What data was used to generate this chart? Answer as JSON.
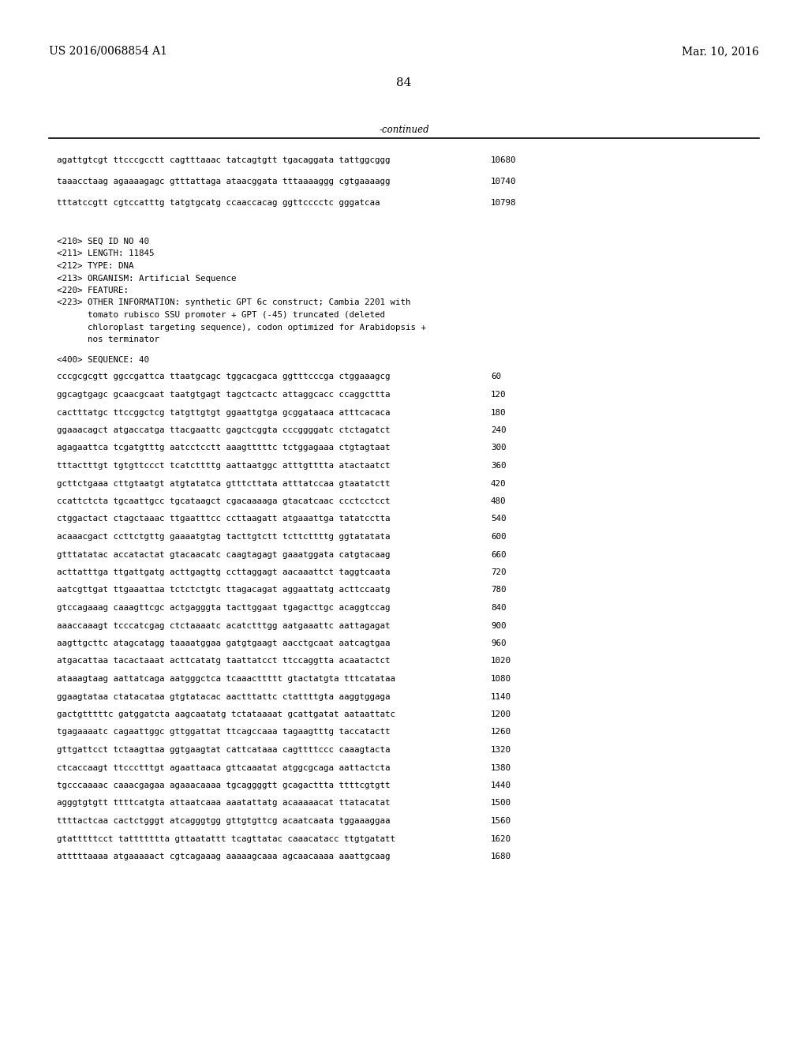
{
  "header_left": "US 2016/0068854 A1",
  "header_right": "Mar. 10, 2016",
  "page_number": "84",
  "continued_label": "-continued",
  "background_color": "#ffffff",
  "text_color": "#000000",
  "sequence_lines_top": [
    [
      "agattgtcgt ttcccgcctt cagtttaaac tatcagtgtt tgacaggata tattggcggg",
      "10680"
    ],
    [
      "taaacctaag agaaaagagc gtttattaga ataacggata tttaaaaggg cgtgaaaagg",
      "10740"
    ],
    [
      "tttatccgtt cgtccatttg tatgtgcatg ccaaccacag ggttcccctc gggatcaa",
      "10798"
    ]
  ],
  "metadata_lines": [
    "<210> SEQ ID NO 40",
    "<211> LENGTH: 11845",
    "<212> TYPE: DNA",
    "<213> ORGANISM: Artificial Sequence",
    "<220> FEATURE:",
    "<223> OTHER INFORMATION: synthetic GPT 6c construct; Cambia 2201 with",
    "      tomato rubisco SSU promoter + GPT (-45) truncated (deleted",
    "      chloroplast targeting sequence), codon optimized for Arabidopsis +",
    "      nos terminator"
  ],
  "sequence_label": "<400> SEQUENCE: 40",
  "sequence_lines": [
    [
      "cccgcgcgtt ggccgattca ttaatgcagc tggcacgaca ggtttcccga ctggaaagcg",
      "60"
    ],
    [
      "ggcagtgagc gcaacgcaat taatgtgagt tagctcactc attaggcacc ccaggcttta",
      "120"
    ],
    [
      "cactttatgc ttccggctcg tatgttgtgt ggaattgtga gcggataaca atttcacaca",
      "180"
    ],
    [
      "ggaaacagct atgaccatga ttacgaattc gagctcggta cccggggatc ctctagatct",
      "240"
    ],
    [
      "agagaattca tcgatgtttg aatcctcctt aaagtttttc tctggagaaa ctgtagtaat",
      "300"
    ],
    [
      "tttactttgt tgtgttccct tcatcttttg aattaatggc atttgtttta atactaatct",
      "360"
    ],
    [
      "gcttctgaaa cttgtaatgt atgtatatca gtttcttata atttatccaa gtaatatctt",
      "420"
    ],
    [
      "ccattctcta tgcaattgcc tgcataagct cgacaaaaga gtacatcaac ccctcctcct",
      "480"
    ],
    [
      "ctggactact ctagctaaac ttgaatttcc ccttaagatt atgaaattga tatatcctta",
      "540"
    ],
    [
      "acaaacgact ccttctgttg gaaaatgtag tacttgtctt tcttcttttg ggtatatata",
      "600"
    ],
    [
      "gtttatatac accatactat gtacaacatc caagtagagt gaaatggata catgtacaag",
      "660"
    ],
    [
      "acttatttga ttgattgatg acttgagttg ccttaggagt aacaaattct taggtcaata",
      "720"
    ],
    [
      "aatcgttgat ttgaaattaa tctctctgtc ttagacagat aggaattatg acttccaatg",
      "780"
    ],
    [
      "gtccagaaag caaagttcgc actgagggta tacttggaat tgagacttgc acaggtccag",
      "840"
    ],
    [
      "aaaccaaagt tcccatcgag ctctaaaatc acatctttgg aatgaaattc aattagagat",
      "900"
    ],
    [
      "aagttgcttc atagcatagg taaaatggaa gatgtgaagt aacctgcaat aatcagtgaa",
      "960"
    ],
    [
      "atgacattaa tacactaaat acttcatatg taattatcct ttccaggtta acaatactct",
      "1020"
    ],
    [
      "ataaagtaag aattatcaga aatgggctca tcaaacttttt gtactatgta tttcatataa",
      "1080"
    ],
    [
      "ggaagtataa ctatacataa gtgtatacac aactttattc ctattttgta aaggtggaga",
      "1140"
    ],
    [
      "gactgtttttc gatggatcta aagcaatatg tctataaaat gcattgatat aataattatc",
      "1200"
    ],
    [
      "tgagaaaatc cagaattggc gttggattat ttcagccaaa tagaagtttg taccatactt",
      "1260"
    ],
    [
      "gttgattcct tctaagttaa ggtgaagtat cattcataaa cagttttccc caaagtacta",
      "1320"
    ],
    [
      "ctcaccaagt ttccctttgt agaattaaca gttcaaatat atggcgcaga aattactcta",
      "1380"
    ],
    [
      "tgcccaaaac caaacgagaa agaaacaaaa tgcaggggtt gcagacttta ttttcgtgtt",
      "1440"
    ],
    [
      "agggtgtgtt ttttcatgta attaatcaaa aaatattatg acaaaaacat ttatacatat",
      "1500"
    ],
    [
      "ttttactcaa cactctgggt atcagggtgg gttgtgttcg acaatcaata tggaaaggaa",
      "1560"
    ],
    [
      "gtatttttcct tattttttta gttaatattt tcagttatac caaacatacc ttgtgatatt",
      "1620"
    ],
    [
      "atttttaaaa atgaaaaact cgtcagaaag aaaaagcaaa agcaacaaaa aaattgcaag",
      "1680"
    ]
  ]
}
